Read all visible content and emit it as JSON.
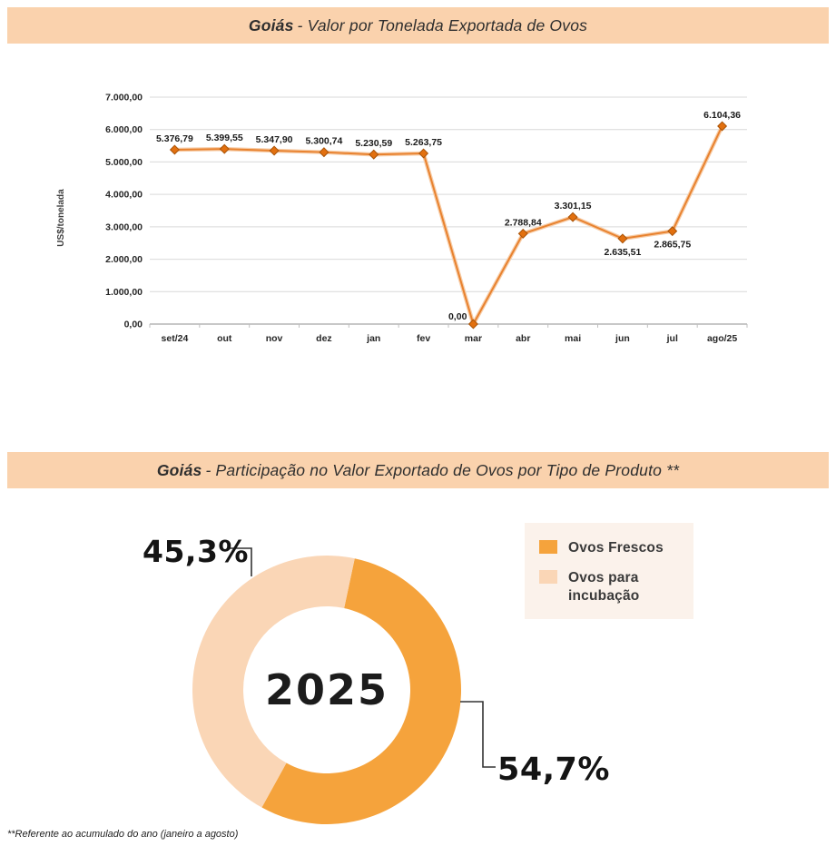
{
  "banner1": {
    "title_bold": "Goiás",
    "title_rest": "- Valor por Tonelada Exportada de Ovos"
  },
  "banner2": {
    "title_bold": "Goiás",
    "title_rest": "- Participação no Valor Exportado de Ovos por Tipo de Produto **"
  },
  "footnote": "**Referente ao acumulado do ano (janeiro a agosto)",
  "colors": {
    "banner_bg": "#FAD2AD",
    "line": "#E8822F",
    "line_halo": "#F7CDA8",
    "marker_fill": "#E2700F",
    "marker_stroke": "#A85308",
    "grid": "#D9D9D9",
    "axis": "#A6A6A6",
    "tick": "#BFBFBF",
    "text_dark": "#1A1A1A",
    "donut_orange": "#F5A33C",
    "donut_peach": "#FAD6B6",
    "legend_bg": "#FBF2EB",
    "callout_line": "#333333"
  },
  "chart_data": [
    {
      "type": "line",
      "title": "Goiás - Valor por Tonelada Exportada de Ovos",
      "xlabel": "",
      "ylabel": "US$/tonelada",
      "categories": [
        "set/24",
        "out",
        "nov",
        "dez",
        "jan",
        "fev",
        "mar",
        "abr",
        "mai",
        "jun",
        "jul",
        "ago/25"
      ],
      "values": [
        5376.79,
        5399.55,
        5347.9,
        5300.74,
        5230.59,
        5263.75,
        0.0,
        2788.84,
        3301.15,
        2635.51,
        2865.75,
        6104.36
      ],
      "point_labels": [
        "5.376,79",
        "5.399,55",
        "5.347,90",
        "5.300,74",
        "5.230,59",
        "5.263,75",
        "0,00",
        "2.788,84",
        "3.301,15",
        "2.635,51",
        "2.865,75",
        "6.104,36"
      ],
      "label_placement": [
        "above",
        "above",
        "above",
        "above",
        "above",
        "above",
        "left-above",
        "above",
        "above",
        "below",
        "below",
        "above"
      ],
      "ylim": [
        0,
        7000
      ],
      "ytick_step": 1000,
      "ytick_labels": [
        "0,00",
        "1.000,00",
        "2.000,00",
        "3.000,00",
        "4.000,00",
        "5.000,00",
        "6.000,00",
        "7.000,00"
      ],
      "grid": true,
      "legend": "none",
      "marker": "diamond"
    },
    {
      "type": "pie",
      "subtype": "donut",
      "title": "Goiás - Participação no Valor Exportado de Ovos por Tipo de Produto **",
      "center_label": "2025",
      "start_angle_deg": 12,
      "donut_hole_ratio": 0.62,
      "legend_position": "right",
      "slices": [
        {
          "name": "Ovos Frescos",
          "value": 54.7,
          "label": "54,7%",
          "color": "#F5A33C"
        },
        {
          "name": "Ovos para incubação",
          "value": 45.3,
          "label": "45,3%",
          "color": "#FAD6B6"
        }
      ]
    }
  ]
}
